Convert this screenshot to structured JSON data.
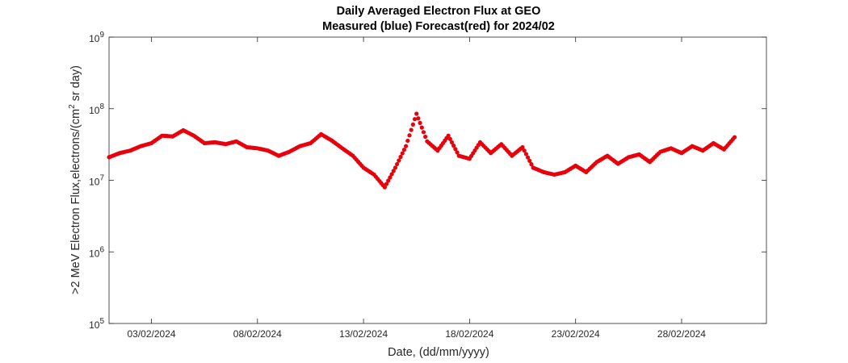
{
  "chart_data": {
    "type": "scatter",
    "title": "Daily Averaged Electron Flux at GEO",
    "subtitle": "Measured (blue) Forecast(red) for 2024/02",
    "xlabel": "Date, (dd/mm/yyyy)",
    "ylabel": ">2 MeV Electron Flux,electrons/(cm2 sr day)",
    "y_scale": "log",
    "ylim": [
      100000,
      1000000000
    ],
    "y_ticks": [
      {
        "base": "10",
        "exp": "5",
        "value": 100000
      },
      {
        "base": "10",
        "exp": "6",
        "value": 1000000
      },
      {
        "base": "10",
        "exp": "7",
        "value": 10000000
      },
      {
        "base": "10",
        "exp": "8",
        "value": 100000000
      },
      {
        "base": "10",
        "exp": "9",
        "value": 1000000000
      }
    ],
    "xlim": [
      "2024-02-01",
      "2024-03-03"
    ],
    "x_ticks": [
      {
        "label": "03/02/2024",
        "date": "2024-02-03"
      },
      {
        "label": "08/02/2024",
        "date": "2024-02-08"
      },
      {
        "label": "13/02/2024",
        "date": "2024-02-13"
      },
      {
        "label": "18/02/2024",
        "date": "2024-02-18"
      },
      {
        "label": "23/02/2024",
        "date": "2024-02-23"
      },
      {
        "label": "28/02/2024",
        "date": "2024-02-28"
      }
    ],
    "grid": false,
    "series": [
      {
        "color": "#e8000b",
        "marker": "circle",
        "points": [
          [
            "2024-02-01 00:00",
            21000000
          ],
          [
            "2024-02-01 12:00",
            24000000
          ],
          [
            "2024-02-02 00:00",
            26000000
          ],
          [
            "2024-02-02 12:00",
            30000000
          ],
          [
            "2024-02-03 00:00",
            33000000
          ],
          [
            "2024-02-03 12:00",
            42000000
          ],
          [
            "2024-02-04 00:00",
            41000000
          ],
          [
            "2024-02-04 12:00",
            50000000
          ],
          [
            "2024-02-05 00:00",
            42000000
          ],
          [
            "2024-02-05 12:00",
            33000000
          ],
          [
            "2024-02-06 00:00",
            34000000
          ],
          [
            "2024-02-06 12:00",
            32000000
          ],
          [
            "2024-02-07 00:00",
            35000000
          ],
          [
            "2024-02-07 12:00",
            29000000
          ],
          [
            "2024-02-08 00:00",
            28000000
          ],
          [
            "2024-02-08 12:00",
            26000000
          ],
          [
            "2024-02-09 00:00",
            22000000
          ],
          [
            "2024-02-09 12:00",
            25000000
          ],
          [
            "2024-02-10 00:00",
            30000000
          ],
          [
            "2024-02-10 12:00",
            33000000
          ],
          [
            "2024-02-11 00:00",
            44000000
          ],
          [
            "2024-02-11 12:00",
            36000000
          ],
          [
            "2024-02-12 00:00",
            28000000
          ],
          [
            "2024-02-12 12:00",
            22000000
          ],
          [
            "2024-02-13 00:00",
            15000000
          ],
          [
            "2024-02-13 12:00",
            12000000
          ],
          [
            "2024-02-14 00:00",
            8000000
          ],
          [
            "2024-02-14 12:00",
            15000000
          ],
          [
            "2024-02-15 00:00",
            30000000
          ],
          [
            "2024-02-15 12:00",
            85000000
          ],
          [
            "2024-02-16 00:00",
            35000000
          ],
          [
            "2024-02-16 12:00",
            26000000
          ],
          [
            "2024-02-17 00:00",
            42000000
          ],
          [
            "2024-02-17 12:00",
            22000000
          ],
          [
            "2024-02-18 00:00",
            20000000
          ],
          [
            "2024-02-18 12:00",
            34000000
          ],
          [
            "2024-02-19 00:00",
            24000000
          ],
          [
            "2024-02-19 12:00",
            32000000
          ],
          [
            "2024-02-20 00:00",
            22000000
          ],
          [
            "2024-02-20 12:00",
            29000000
          ],
          [
            "2024-02-21 00:00",
            15000000
          ],
          [
            "2024-02-21 12:00",
            13000000
          ],
          [
            "2024-02-22 00:00",
            12000000
          ],
          [
            "2024-02-22 12:00",
            13000000
          ],
          [
            "2024-02-23 00:00",
            16000000
          ],
          [
            "2024-02-23 12:00",
            13000000
          ],
          [
            "2024-02-24 00:00",
            18000000
          ],
          [
            "2024-02-24 12:00",
            22000000
          ],
          [
            "2024-02-25 00:00",
            17000000
          ],
          [
            "2024-02-25 12:00",
            21000000
          ],
          [
            "2024-02-26 00:00",
            23000000
          ],
          [
            "2024-02-26 12:00",
            18000000
          ],
          [
            "2024-02-27 00:00",
            25000000
          ],
          [
            "2024-02-27 12:00",
            28000000
          ],
          [
            "2024-02-28 00:00",
            24000000
          ],
          [
            "2024-02-28 12:00",
            30000000
          ],
          [
            "2024-02-29 00:00",
            26000000
          ],
          [
            "2024-02-29 12:00",
            33000000
          ],
          [
            "2024-03-01 00:00",
            27000000
          ],
          [
            "2024-03-01 12:00",
            40000000
          ]
        ]
      }
    ]
  }
}
